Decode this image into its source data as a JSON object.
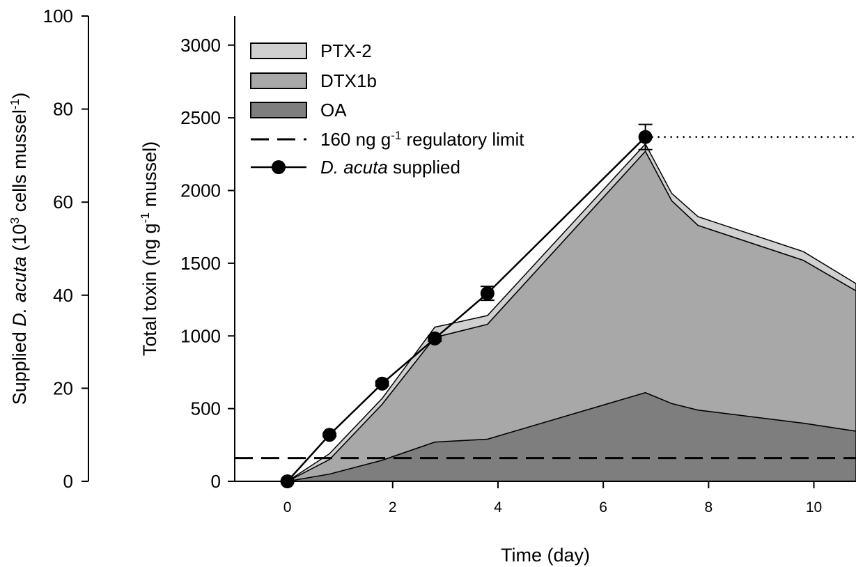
{
  "chart_data": {
    "type": "stacked_area",
    "x_label": "Time (day)",
    "y_label_parts": [
      {
        "text": "Total toxin (ng g"
      },
      {
        "text": "-1",
        "sup": true
      },
      {
        "text": " mussel)"
      }
    ],
    "y2_label_parts": [
      {
        "text": "Supplied "
      },
      {
        "text": "D. acuta",
        "italic": true
      },
      {
        "text": " (10"
      },
      {
        "text": "3",
        "sup": true
      },
      {
        "text": " cells mussel"
      },
      {
        "text": "-1",
        "sup": true
      },
      {
        "text": ")"
      }
    ],
    "xlim": [
      -1,
      10.8
    ],
    "xticks": [
      0,
      2,
      4,
      6,
      8,
      10
    ],
    "ylim": [
      0,
      3200
    ],
    "yticks": [
      0,
      500,
      1000,
      1500,
      2000,
      2500,
      3000
    ],
    "y2lim": [
      0,
      100
    ],
    "y2ticks": [
      0,
      20,
      40,
      60,
      80,
      100
    ],
    "x": [
      0,
      0.8,
      1.8,
      2.8,
      3.8,
      6.8,
      7.3,
      7.8,
      9.8,
      10.8
    ],
    "series": [
      {
        "name": "OA",
        "color": "#7e7e7e",
        "values": [
          0,
          50,
          145,
          270,
          290,
          610,
          535,
          490,
          400,
          345
        ]
      },
      {
        "name": "DTX1b",
        "color": "#a8a8a8",
        "values": [
          0,
          100,
          385,
          720,
          790,
          1660,
          1395,
          1270,
          1120,
          965
        ]
      },
      {
        "name": "PTX-2",
        "color": "#d0d0d0",
        "values": [
          0,
          40,
          40,
          70,
          60,
          50,
          50,
          60,
          60,
          50
        ]
      }
    ],
    "reference_line": {
      "value": 160,
      "label_parts": [
        {
          "text": "160 ng g"
        },
        {
          "text": "-1",
          "sup": true
        },
        {
          "text": " regulatory limit"
        }
      ],
      "color": "#000000"
    },
    "supply_series": {
      "name_parts": [
        {
          "text": "D. acuta",
          "italic": true
        },
        {
          "text": " supplied"
        }
      ],
      "axis": "y2",
      "color": "#000000",
      "x": [
        0,
        0.8,
        1.8,
        2.8,
        3.8,
        6.8
      ],
      "values": [
        0,
        10,
        21,
        30.7,
        40.4,
        74
      ],
      "errors": [
        0,
        0.3,
        0.5,
        0.6,
        1.5,
        2.7
      ]
    }
  }
}
